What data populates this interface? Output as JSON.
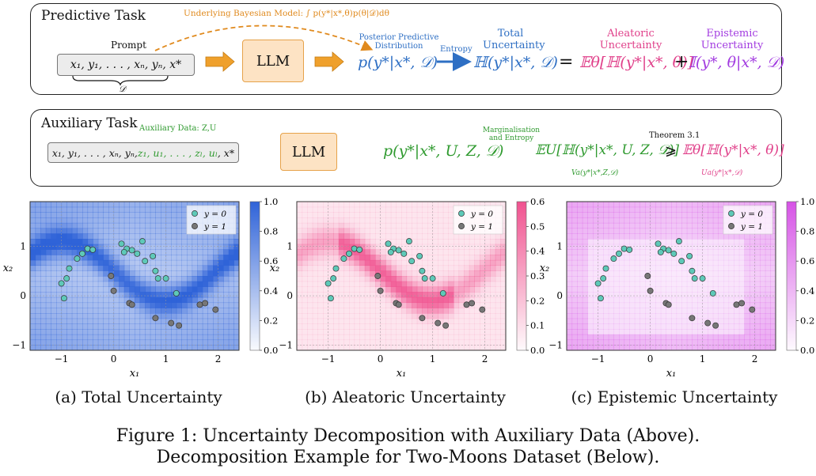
{
  "predictive": {
    "title": "Predictive Task",
    "bayes_label": "Underlying Bayesian Model: ∫ p(y*|x*,θ)p(θ|𝒟)dθ",
    "prompt_label": "Prompt",
    "prompt_text": "x₁, y₁, . . . , xₙ, yₙ, x*",
    "brace_label": "𝒟",
    "llm": "LLM",
    "posterior_label_1": "Posterior Predictive",
    "posterior_label_2": "Distribution",
    "posterior_formula": "p(y*|x*, 𝒟)",
    "entropy_label": "Entropy",
    "total_label_1": "Total",
    "total_label_2": "Uncertainty",
    "total_formula": "ℍ(y*|x*, 𝒟)",
    "equals": "=",
    "aleatoric_label_1": "Aleatoric",
    "aleatoric_label_2": "Uncertainty",
    "aleatoric_formula": "𝔼θ[ℍ(y*|x*, θ)]",
    "plus": "+",
    "epistemic_label_1": "Epistemic",
    "epistemic_label_2": "Uncertainty",
    "epistemic_formula": "𝕀(y*, θ|x*, 𝒟)"
  },
  "auxiliary": {
    "title": "Auxiliary Task",
    "aux_data_label": "Auxiliary Data: Z,U",
    "prompt_black": "x₁, y₁, . . . , xₙ, yₙ, ",
    "prompt_green": "z₁, u₁, . . . , zₗ, uₗ",
    "prompt_end": ", x*",
    "llm": "LLM",
    "posterior_formula": "p(y*|x*, U, Z, 𝒟)",
    "marg_label_1": "Marginalisation",
    "marg_label_2": "and Entropy",
    "expect_formula": "𝔼U[ℍ(y*|x*, U, Z, 𝒟)]",
    "va_label": "Va(y*|x*,Z,𝒟)",
    "theorem": "Theorem 3.1",
    "geq": "⩾",
    "expect2_formula": "𝔼θ[ℍ(y*|x*, θ)]",
    "ua_label": "Ua(y*|x*,𝒟)"
  },
  "plots": [
    {
      "caption": "(a) Total Uncertainty",
      "cmap": "#2f63d8",
      "cbar_ticks": [
        "1.0",
        "0.8",
        "0.6",
        "0.4",
        "0.2",
        "0.0"
      ],
      "cbar_max": 1.0
    },
    {
      "caption": "(b) Aleatoric Uncertainty",
      "cmap": "#f0528f",
      "cbar_ticks": [
        "0.6",
        "0.5",
        "0.4",
        "0.3",
        "0.2",
        "0.1",
        "0.0"
      ],
      "cbar_max": 0.6
    },
    {
      "caption": "(c) Epistemic Uncertainty",
      "cmap": "#d653e6",
      "cbar_ticks": [
        "1.0",
        "0.8",
        "0.6",
        "0.4",
        "0.2",
        "0.0"
      ],
      "cbar_max": 1.0
    }
  ],
  "axes": {
    "xlabel": "x₁",
    "ylabel": "x₂",
    "xticks": [
      -1,
      0,
      1,
      2
    ],
    "yticks": [
      -1,
      0,
      1
    ],
    "xlim": [
      -1.6,
      2.4
    ],
    "ylim": [
      -1.1,
      1.9
    ]
  },
  "legend": {
    "class0": "y = 0",
    "class1": "y = 1",
    "color0": "#5ec9b8",
    "color1": "#777777"
  },
  "chart_data": {
    "type": "scatter",
    "xlabel": "x₁",
    "ylabel": "x₂",
    "xlim": [
      -1.6,
      2.4
    ],
    "ylim": [
      -1.1,
      1.9
    ],
    "series": [
      {
        "name": "y = 0",
        "points": [
          [
            -1.0,
            0.25
          ],
          [
            -0.9,
            0.35
          ],
          [
            -0.85,
            0.55
          ],
          [
            -0.7,
            0.75
          ],
          [
            -0.6,
            0.85
          ],
          [
            -0.5,
            0.95
          ],
          [
            -0.4,
            0.93
          ],
          [
            -0.95,
            -0.05
          ],
          [
            0.15,
            1.05
          ],
          [
            0.25,
            0.95
          ],
          [
            0.35,
            0.92
          ],
          [
            0.55,
            1.1
          ],
          [
            0.2,
            0.88
          ],
          [
            0.45,
            0.85
          ],
          [
            0.6,
            0.7
          ],
          [
            0.75,
            0.8
          ],
          [
            0.8,
            0.5
          ],
          [
            0.85,
            0.35
          ],
          [
            1.0,
            0.35
          ],
          [
            1.2,
            0.05
          ]
        ]
      },
      {
        "name": "y = 1",
        "points": [
          [
            -0.05,
            0.4
          ],
          [
            0.0,
            0.1
          ],
          [
            0.3,
            -0.15
          ],
          [
            0.35,
            -0.18
          ],
          [
            0.8,
            -0.45
          ],
          [
            1.1,
            -0.55
          ],
          [
            1.25,
            -0.6
          ],
          [
            1.65,
            -0.18
          ],
          [
            1.75,
            -0.15
          ],
          [
            1.95,
            -0.28
          ]
        ]
      }
    ]
  },
  "figure_caption_1": "Figure 1: Uncertainty Decomposition with Auxiliary Data (Above).",
  "figure_caption_2": "Decomposition Example for Two-Moons Dataset (Below)."
}
